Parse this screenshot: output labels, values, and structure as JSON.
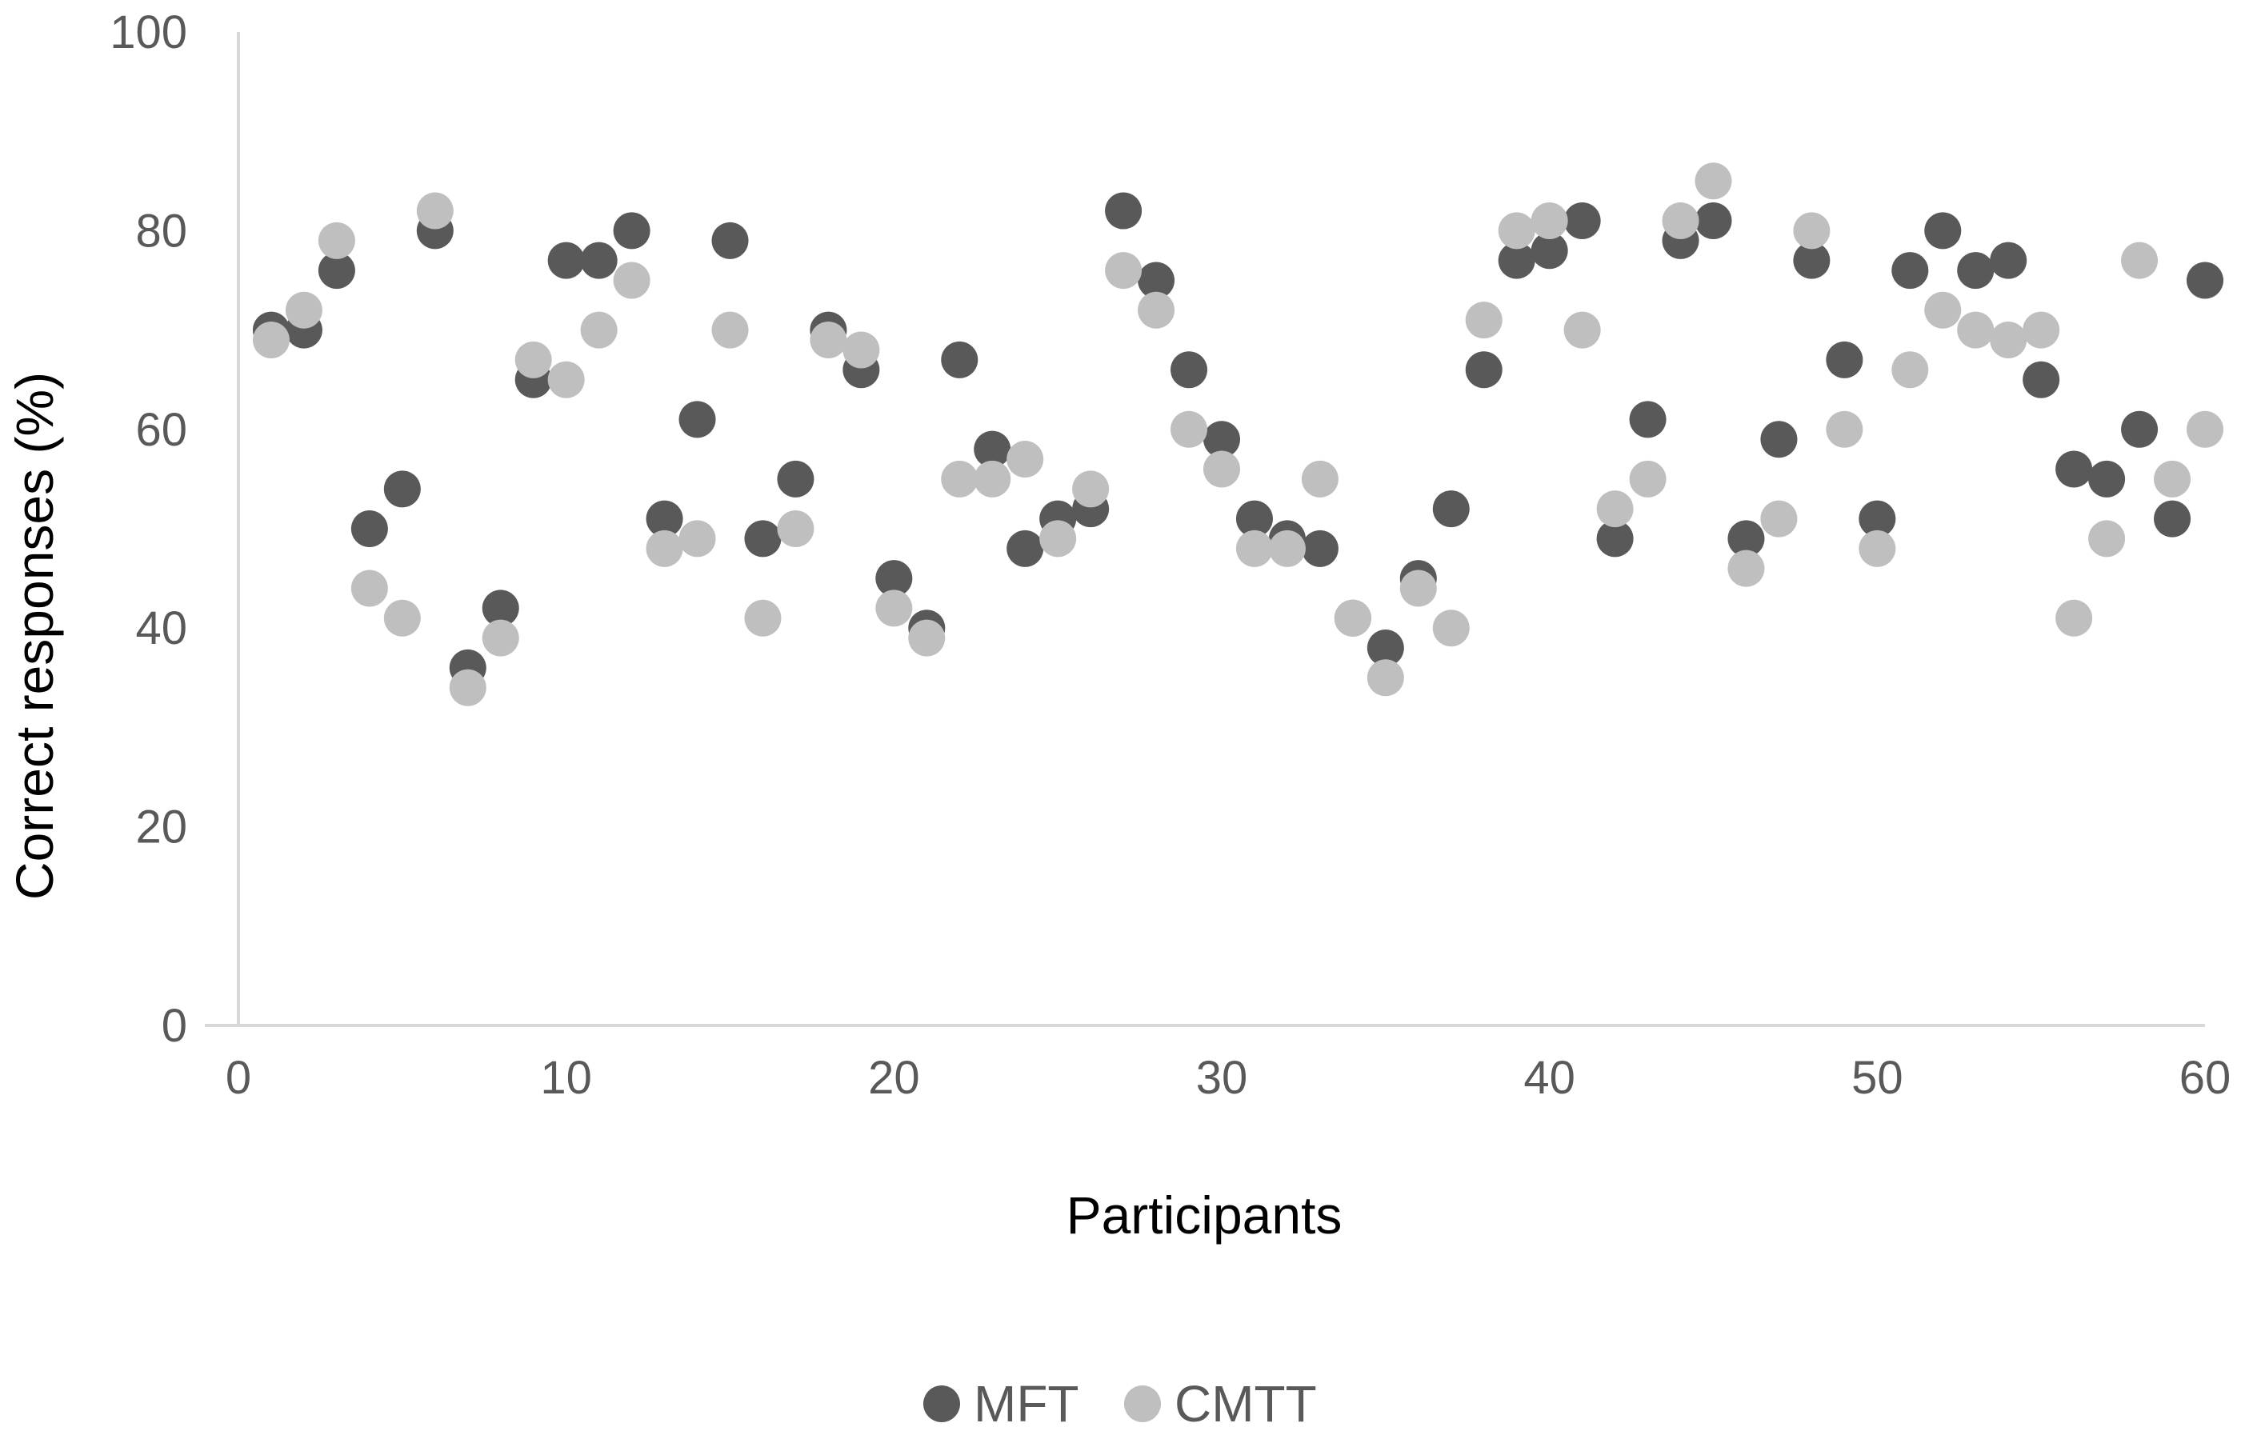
{
  "chart_data": {
    "type": "scatter",
    "title": "",
    "xlabel": "Participants",
    "ylabel": "Correct responses (%)",
    "xlim": [
      0,
      60
    ],
    "ylim": [
      0,
      100
    ],
    "xticks": [
      "0",
      "10",
      "20",
      "30",
      "40",
      "50",
      "60"
    ],
    "yticks": [
      "0",
      "20",
      "40",
      "60",
      "80",
      "100"
    ],
    "grid": false,
    "legend_position": "bottom",
    "series": [
      {
        "name": "MFT",
        "color": "#595959",
        "x": [
          1,
          2,
          3,
          4,
          5,
          6,
          7,
          8,
          9,
          10,
          11,
          12,
          13,
          14,
          15,
          16,
          17,
          18,
          19,
          20,
          21,
          22,
          23,
          24,
          25,
          26,
          27,
          28,
          29,
          30,
          31,
          32,
          33,
          34,
          35,
          36,
          37,
          38,
          39,
          40,
          41,
          42,
          43,
          44,
          45,
          46,
          47,
          48,
          49,
          50,
          51,
          52,
          53,
          54,
          55,
          56,
          57,
          58,
          59,
          60
        ],
        "y": [
          70,
          70,
          76,
          50,
          54,
          80,
          36,
          42,
          65,
          77,
          77,
          80,
          51,
          61,
          79,
          49,
          55,
          70,
          66,
          45,
          40,
          67,
          58,
          48,
          51,
          52,
          82,
          75,
          66,
          59,
          51,
          49,
          48,
          41,
          38,
          45,
          52,
          66,
          77,
          78,
          81,
          49,
          61,
          79,
          81,
          49,
          59,
          77,
          67,
          51,
          76,
          80,
          76,
          77,
          65,
          56,
          55,
          60,
          51,
          75
        ]
      },
      {
        "name": "CMTT",
        "color": "#bfbfbf",
        "x": [
          1,
          2,
          3,
          4,
          5,
          6,
          7,
          8,
          9,
          10,
          11,
          12,
          13,
          14,
          15,
          16,
          17,
          18,
          19,
          20,
          21,
          22,
          23,
          24,
          25,
          26,
          27,
          28,
          29,
          30,
          31,
          32,
          33,
          34,
          35,
          36,
          37,
          38,
          39,
          40,
          41,
          42,
          43,
          44,
          45,
          46,
          47,
          48,
          49,
          50,
          51,
          52,
          53,
          54,
          55,
          56,
          57,
          58,
          59,
          60
        ],
        "y": [
          69,
          72,
          79,
          44,
          41,
          82,
          34,
          39,
          67,
          65,
          70,
          75,
          48,
          49,
          70,
          41,
          50,
          69,
          68,
          42,
          39,
          55,
          55,
          57,
          49,
          54,
          76,
          72,
          60,
          56,
          48,
          48,
          55,
          41,
          35,
          44,
          40,
          71,
          80,
          81,
          70,
          52,
          55,
          81,
          85,
          46,
          51,
          80,
          60,
          48,
          66,
          72,
          70,
          69,
          70,
          41,
          49,
          77,
          55,
          60
        ]
      }
    ]
  }
}
